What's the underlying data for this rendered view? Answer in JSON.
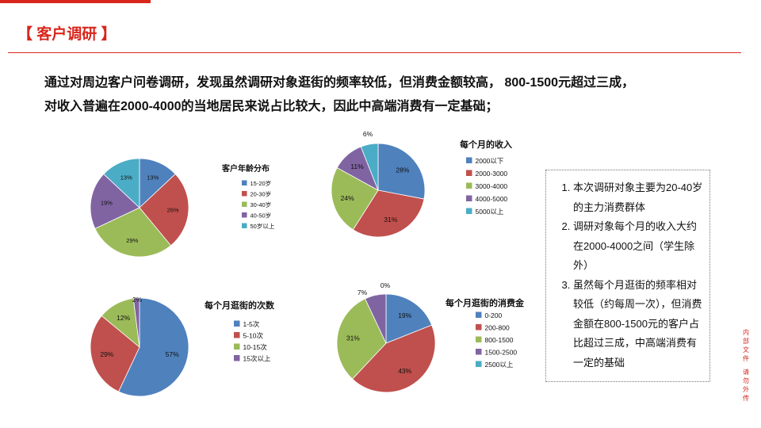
{
  "header": {
    "title": "【 客户调研 】"
  },
  "summary": {
    "line1": "通过对周边客户问卷调研，发现虽然调研对象逛街的频率较低，但消费金额较高， 800-1500元超过三成，",
    "line2": "对收入普遍在2000-4000的当地居民来说占比较大，因此中高端消费有一定基础；"
  },
  "notes": [
    "本次调研对象主要为20-40岁的主力消费群体",
    "调研对象每个月的收入大约在2000-4000之间（学生除外）",
    "虽然每个月逛街的频率相对较低（约每周一次），但消费金额在800-1500元的客户占比超过三成，中高端消费有一定的基础"
  ],
  "side_text": {
    "part1": "内部文件",
    "part2": "请勿外传"
  },
  "colors": {
    "accent": "#d9261c",
    "series": [
      "#4f81bd",
      "#c0504d",
      "#9bbb59",
      "#8064a2",
      "#4bacc6"
    ]
  },
  "chart_data": [
    {
      "type": "pie",
      "title": "客户年龄分布",
      "categories": [
        "15-20岁",
        "20-30岁",
        "30-40岁",
        "40-50岁",
        "50岁以上"
      ],
      "values": [
        13,
        26,
        29,
        19,
        13
      ],
      "labels": [
        "13%",
        "26%",
        "29%",
        "19%",
        "13%"
      ]
    },
    {
      "type": "pie",
      "title": "每个月的收入",
      "categories": [
        "2000以下",
        "2000-3000",
        "3000-4000",
        "4000-5000",
        "5000以上"
      ],
      "values": [
        28,
        31,
        24,
        11,
        6
      ],
      "labels": [
        "28%",
        "31%",
        "24%",
        "11%",
        "6%"
      ]
    },
    {
      "type": "pie",
      "title": "每个月逛街的次数",
      "categories": [
        "1-5次",
        "5-10次",
        "10-15次",
        "15次以上"
      ],
      "values": [
        57,
        29,
        12,
        2
      ],
      "labels": [
        "57%",
        "29%",
        "12%",
        "2%"
      ]
    },
    {
      "type": "pie",
      "title": "每个月逛街的消费金",
      "categories": [
        "0-200",
        "200-800",
        "800-1500",
        "1500-2500",
        "2500以上"
      ],
      "values": [
        19,
        43,
        31,
        7,
        0
      ],
      "labels": [
        "19%",
        "43%",
        "31%",
        "7%",
        "0%"
      ]
    }
  ]
}
